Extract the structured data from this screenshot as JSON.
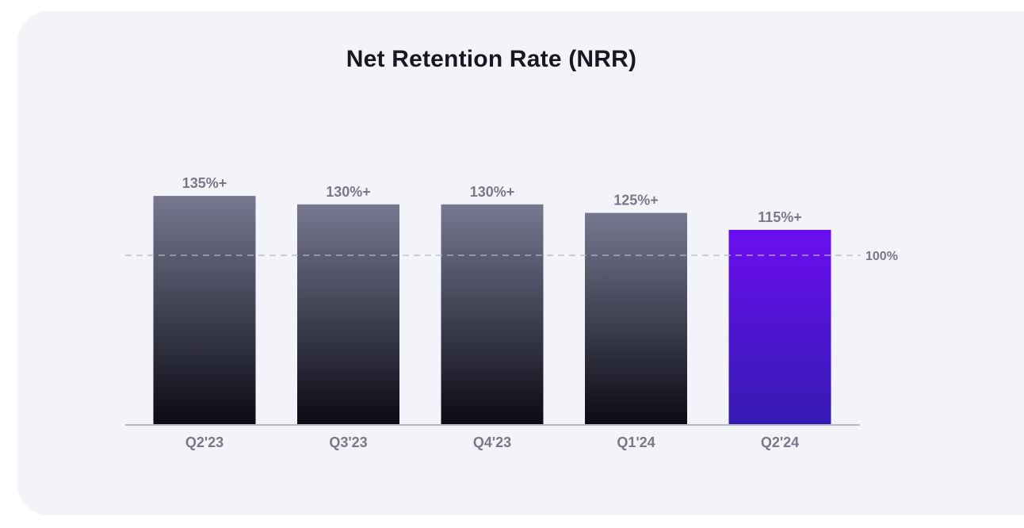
{
  "chart_data": {
    "type": "bar",
    "title": "Net Retention Rate (NRR)",
    "categories": [
      "Q2'23",
      "Q3'23",
      "Q4'23",
      "Q1'24",
      "Q2'24"
    ],
    "values": [
      135,
      130,
      130,
      125,
      115
    ],
    "data_labels": [
      "135%+",
      "130%+",
      "130%+",
      "125%+",
      "115%+"
    ],
    "reference_line": {
      "value": 100,
      "label": "100%"
    },
    "highlight_index": 4,
    "colors": {
      "bar_top": "#777890",
      "bar_bottom": "#0a0a14",
      "highlight_top": "#6b0ef0",
      "highlight_bottom": "#341bb0",
      "axis": "#b8b6c8",
      "label": "#7a7888",
      "background": "#f3f4f9"
    },
    "grid": false,
    "legend": "none"
  }
}
